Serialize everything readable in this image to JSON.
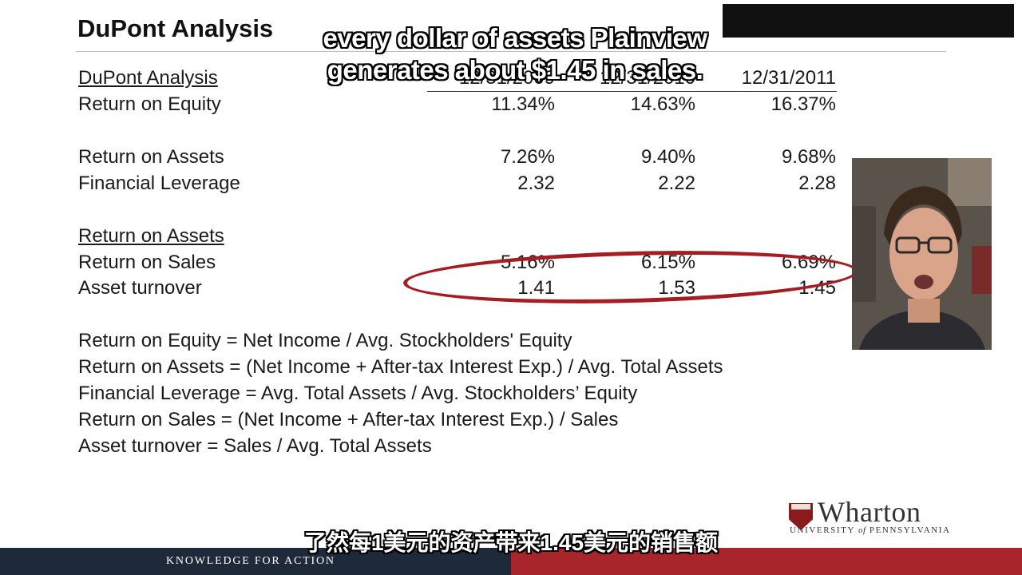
{
  "slide": {
    "title": "DuPont Analysis",
    "section_header": "DuPont Analysis",
    "columns": [
      "12/31/2009",
      "12/31/2010",
      "12/31/2011"
    ],
    "rows": [
      {
        "label": "Return on Equity",
        "values": [
          "11.34%",
          "14.63%",
          "16.37%"
        ]
      },
      {
        "label": "Return on Assets",
        "values": [
          "7.26%",
          "9.40%",
          "9.68%"
        ]
      },
      {
        "label": "Financial Leverage",
        "values": [
          "2.32",
          "2.22",
          "2.28"
        ]
      },
      {
        "label": "Return on Sales",
        "values": [
          "5.16%",
          "6.15%",
          "6.69%"
        ]
      },
      {
        "label": "Asset turnover",
        "values": [
          "1.41",
          "1.53",
          "1.45"
        ]
      }
    ],
    "subsection_header": "Return on Assets",
    "formulas": [
      "Return on Equity = Net Income / Avg. Stockholders' Equity",
      "Return on Assets = (Net Income + After-tax Interest Exp.) / Avg. Total Assets",
      "Financial Leverage = Avg. Total Assets / Avg. Stockholders’ Equity",
      "Return on Sales =  (Net Income + After-tax Interest Exp.) / Sales",
      "Asset turnover = Sales / Avg. Total Assets"
    ],
    "highlight_color": "#a41d22"
  },
  "logo": {
    "name": "Wharton",
    "sub_prefix": "UNIVERSITY",
    "sub_of": "of",
    "sub_suffix": "PENNSYLVANIA"
  },
  "footer": {
    "tagline": "KNOWLEDGE FOR ACTION",
    "colors": {
      "left": "#1e2a3a",
      "right": "#a8262b"
    }
  },
  "subtitles": {
    "english_line1": "every dollar of assets Plainview",
    "english_line2": "generates about $1.45 in sales.",
    "chinese": "了然每1美元的资产带来1.45美元的销售额"
  },
  "webcam": {
    "icon": "presenter-video"
  }
}
